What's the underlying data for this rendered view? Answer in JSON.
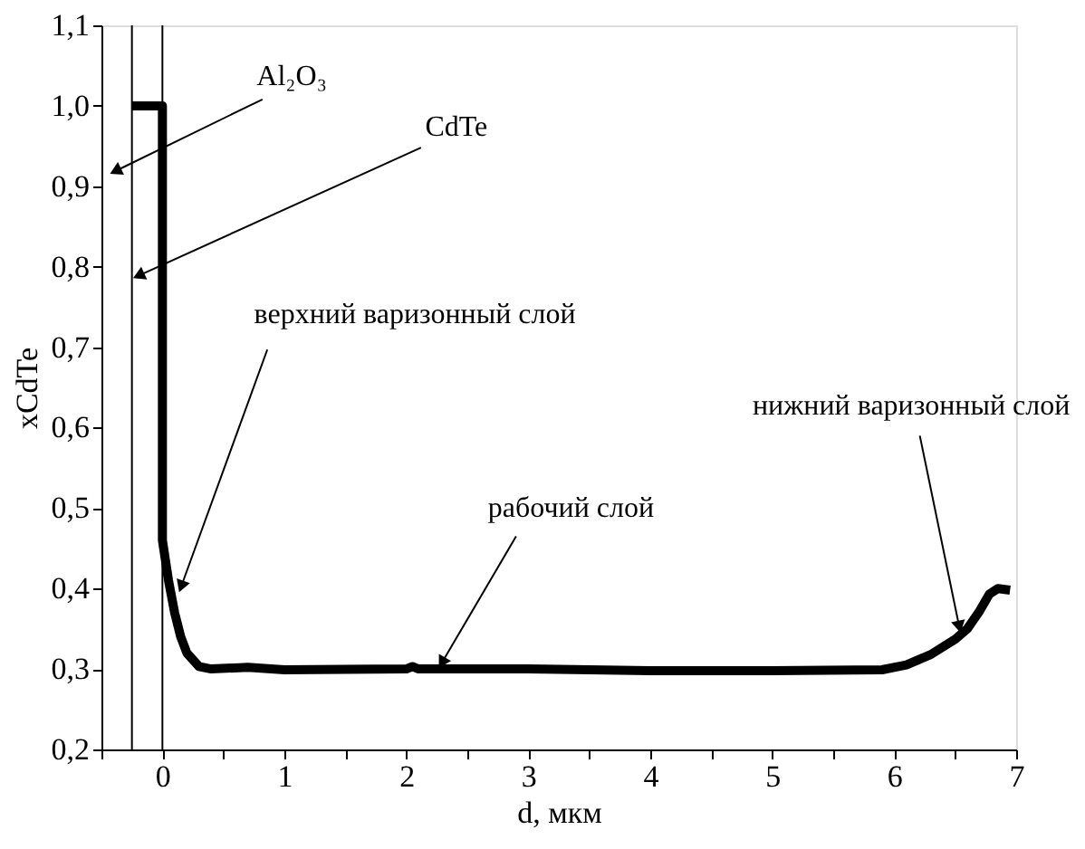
{
  "chart_data": {
    "type": "line",
    "xlabel": "d, мкм",
    "ylabel": "xCdTe",
    "x": [
      -0.25,
      0,
      0,
      0.05,
      0.1,
      0.15,
      0.2,
      0.3,
      0.4,
      0.7,
      1,
      2,
      2.05,
      2.1,
      3,
      4,
      5,
      5.9,
      6.1,
      6.3,
      6.5,
      6.6,
      6.7,
      6.78,
      6.85,
      6.95
    ],
    "series": [
      {
        "color": "#000000",
        "values": [
          1.0,
          1.0,
          0.46,
          0.41,
          0.37,
          0.34,
          0.32,
          0.303,
          0.3,
          0.302,
          0.299,
          0.3,
          0.303,
          0.3,
          0.3,
          0.298,
          0.298,
          0.299,
          0.305,
          0.318,
          0.337,
          0.35,
          0.372,
          0.393,
          0.4,
          0.398
        ]
      }
    ],
    "xlim": [
      -0.5,
      7
    ],
    "ylim": [
      0.2,
      1.1
    ],
    "xticks": [
      {
        "value": -0.5,
        "label": null
      },
      0,
      {
        "value": 0.5,
        "label": null
      },
      1,
      {
        "value": 1.5,
        "label": null
      },
      2,
      {
        "value": 2.5,
        "label": null
      },
      3,
      {
        "value": 3.5,
        "label": null
      },
      4,
      {
        "value": 4.5,
        "label": null
      },
      5,
      {
        "value": 5.5,
        "label": null
      },
      6,
      {
        "value": 6.5,
        "label": null
      },
      7
    ],
    "yticks": [
      {
        "value": 0.2,
        "label": "0,2"
      },
      {
        "value": 0.3,
        "label": "0,3"
      },
      {
        "value": 0.4,
        "label": "0,4"
      },
      {
        "value": 0.5,
        "label": "0,5"
      },
      {
        "value": 0.6,
        "label": "0,6"
      },
      {
        "value": 0.7,
        "label": "0,7"
      },
      {
        "value": 0.8,
        "label": "0,8"
      },
      {
        "value": 0.9,
        "label": "0,9"
      },
      {
        "value": 1.0,
        "label": "1,0"
      },
      {
        "value": 1.1,
        "label": "1,1"
      }
    ],
    "ref_lines": [
      {
        "axis": "x",
        "value": -0.25,
        "color": "#000000"
      },
      {
        "axis": "x",
        "value": 0,
        "color": "#000000"
      }
    ],
    "annotations": [
      {
        "text": "Al₂O₃",
        "x": -0.37,
        "y": 0.92
      },
      {
        "text": "CdTe",
        "x": -0.18,
        "y": 0.79
      },
      {
        "text": "верхний варизонный слой",
        "x": 0.16,
        "y": 0.405
      },
      {
        "text": "рабочий слой",
        "x": 2.3,
        "y": 0.31
      },
      {
        "text": "нижний варизонный слой",
        "x": 6.53,
        "y": 0.355
      }
    ],
    "grid": false,
    "marker": "none",
    "line_style": "solid"
  }
}
